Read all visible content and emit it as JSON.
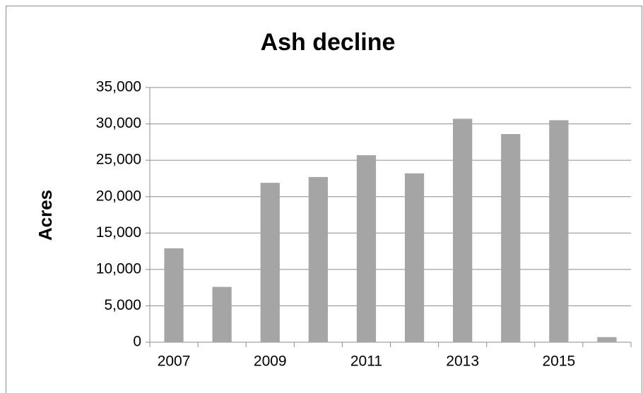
{
  "chart_data": {
    "type": "bar",
    "title": "Ash decline",
    "ylabel": "Acres",
    "categories": [
      "2007",
      null,
      "2009",
      null,
      "2011",
      null,
      "2013",
      null,
      "2015",
      null
    ],
    "values": [
      12900,
      7600,
      21900,
      22700,
      25700,
      23200,
      30700,
      28600,
      30500,
      700
    ],
    "color": "#a5a5a5",
    "ylim": [
      0,
      35000
    ],
    "yticks": [
      0,
      {
        "value": 5000,
        "label": "5,000"
      },
      {
        "value": 10000,
        "label": "10,000"
      },
      {
        "value": 15000,
        "label": "15,000"
      },
      {
        "value": 20000,
        "label": "20,000"
      },
      {
        "value": 25000,
        "label": "25,000"
      },
      {
        "value": 30000,
        "label": "30,000"
      },
      {
        "value": 35000,
        "label": "35,000"
      }
    ],
    "grid": true
  }
}
